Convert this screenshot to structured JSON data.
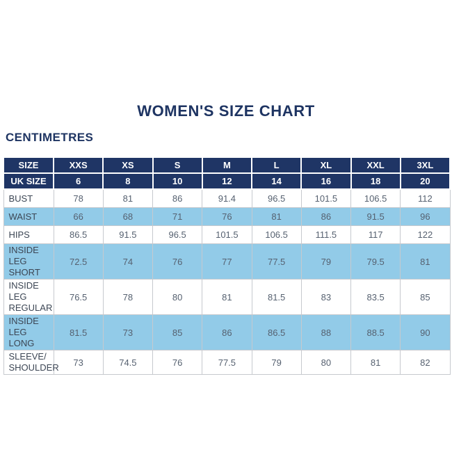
{
  "page": {
    "title": "WOMEN'S SIZE CHART",
    "unit_label": "CENTIMETRES"
  },
  "colors": {
    "navy_header": "#1f3565",
    "light_blue_row": "#92cbe8",
    "white_row": "#ffffff",
    "border_gray": "#c6c9ce",
    "title_text": "#1e3462",
    "header_text": "#ffffff",
    "label_text": "#3c4654",
    "value_text": "#566170"
  },
  "table": {
    "header_rows": [
      {
        "label": "SIZE",
        "values": [
          "XXS",
          "XS",
          "S",
          "M",
          "L",
          "XL",
          "XXL",
          "3XL"
        ]
      },
      {
        "label": "UK SIZE",
        "values": [
          "6",
          "8",
          "10",
          "12",
          "14",
          "16",
          "18",
          "20"
        ]
      }
    ],
    "rows": [
      {
        "label_lines": [
          "BUST"
        ],
        "values": [
          "78",
          "81",
          "86",
          "91.4",
          "96.5",
          "101.5",
          "106.5",
          "112"
        ],
        "highlight": false
      },
      {
        "label_lines": [
          "WAIST"
        ],
        "values": [
          "66",
          "68",
          "71",
          "76",
          "81",
          "86",
          "91.5",
          "96"
        ],
        "highlight": true
      },
      {
        "label_lines": [
          "HIPS"
        ],
        "values": [
          "86.5",
          "91.5",
          "96.5",
          "101.5",
          "106.5",
          "111.5",
          "117",
          "122"
        ],
        "highlight": false
      },
      {
        "label_lines": [
          "INSIDE LEG",
          "SHORT"
        ],
        "values": [
          "72.5",
          "74",
          "76",
          "77",
          "77.5",
          "79",
          "79.5",
          "81"
        ],
        "highlight": true
      },
      {
        "label_lines": [
          "INSIDE LEG",
          "REGULAR"
        ],
        "values": [
          "76.5",
          "78",
          "80",
          "81",
          "81.5",
          "83",
          "83.5",
          "85"
        ],
        "highlight": false
      },
      {
        "label_lines": [
          "INSIDE LEG",
          "LONG"
        ],
        "values": [
          "81.5",
          "73",
          "85",
          "86",
          "86.5",
          "88",
          "88.5",
          "90"
        ],
        "highlight": true
      },
      {
        "label_lines": [
          "SLEEVE/",
          "SHOULDER"
        ],
        "values": [
          "73",
          "74.5",
          "76",
          "77.5",
          "79",
          "80",
          "81",
          "82"
        ],
        "highlight": false
      }
    ]
  }
}
